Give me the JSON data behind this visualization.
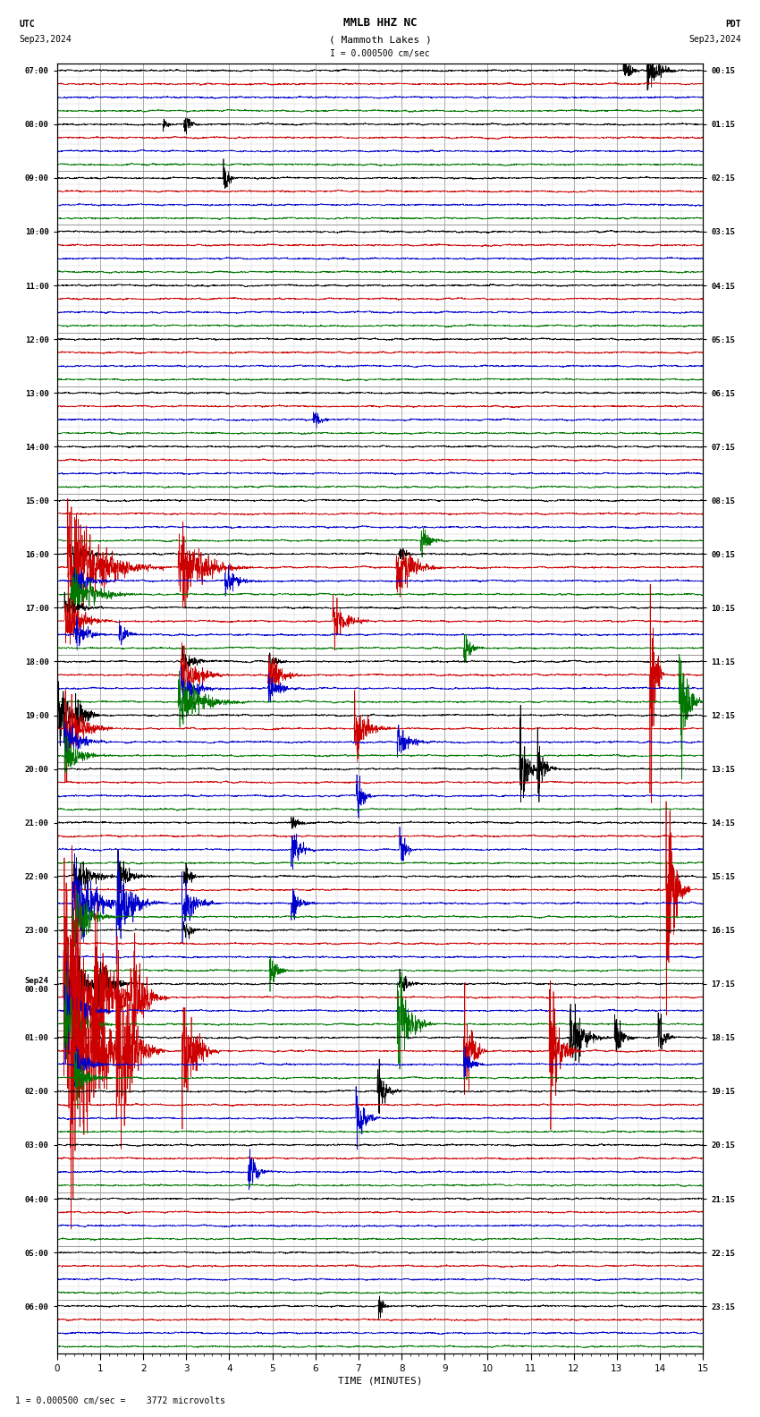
{
  "title_line1": "MMLB HHZ NC",
  "title_line2": "( Mammoth Lakes )",
  "title_scale": "I = 0.000500 cm/sec",
  "utc_label": "UTC",
  "utc_date": "Sep23,2024",
  "pdt_label": "PDT",
  "pdt_date": "Sep23,2024",
  "bottom_label": "1 = 0.000500 cm/sec =    3772 microvolts",
  "xlabel": "TIME (MINUTES)",
  "bg_color": "#ffffff",
  "grid_color": "#aaaaaa",
  "trace_colors": [
    "#000000",
    "#cc0000",
    "#0000cc",
    "#007700"
  ],
  "num_rows": 24,
  "minutes": 15,
  "left_times_utc": [
    "07:00",
    "08:00",
    "09:00",
    "10:00",
    "11:00",
    "12:00",
    "13:00",
    "14:00",
    "15:00",
    "16:00",
    "17:00",
    "18:00",
    "19:00",
    "20:00",
    "21:00",
    "22:00",
    "23:00",
    "Sep24\n00:00",
    "01:00",
    "02:00",
    "03:00",
    "04:00",
    "05:00",
    "06:00"
  ],
  "right_times_pdt": [
    "00:15",
    "01:15",
    "02:15",
    "03:15",
    "04:15",
    "05:15",
    "06:15",
    "07:15",
    "08:15",
    "09:15",
    "10:15",
    "11:15",
    "12:15",
    "13:15",
    "14:15",
    "15:15",
    "16:15",
    "17:15",
    "18:15",
    "19:15",
    "20:15",
    "21:15",
    "22:15",
    "23:15"
  ],
  "noise_seed": 12345
}
